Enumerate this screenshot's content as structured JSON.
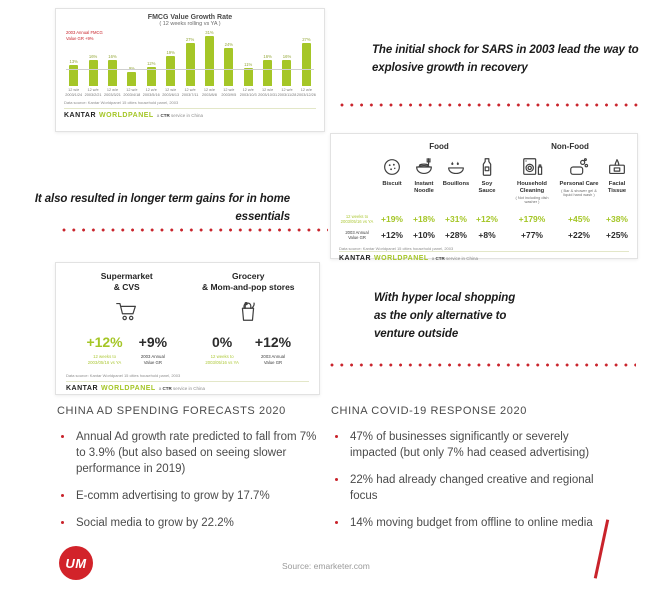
{
  "colors": {
    "lime": "#a5c627",
    "red": "#c9232b",
    "dark": "#3d3d3d"
  },
  "chart_data": {
    "type": "bar",
    "title": "FMCG Value Growth Rate",
    "subtitle": "( 12 weeks rolling vs YA )",
    "period_label": "12 w/e",
    "categories": [
      "2003/1/24",
      "2003/2/21",
      "2003/3/21",
      "2003/4/18",
      "2003/5/16",
      "2003/6/13",
      "2003/7/11",
      "2003/8/8",
      "2003/9/5",
      "2003/10/3",
      "2003/10/31",
      "2003/11/28",
      "2003/12/26"
    ],
    "values": [
      13,
      16,
      16,
      9,
      12,
      19,
      27,
      31,
      24,
      11,
      16,
      16,
      27
    ],
    "value_suffix": "%",
    "ylim": [
      0,
      34
    ],
    "grid": false,
    "reference_line_value": 10,
    "annotation": [
      "2003 Annual FMCG",
      "Value GR +9%"
    ],
    "bar_color": "#a5c627",
    "datasource": "Data source: Kantar Worldpanel 15 cities household panel, 2003"
  },
  "kantar": {
    "brand_black": "KANTAR",
    "brand_lime": "WORLDPANEL",
    "tagline_pre": "a ",
    "tagline_bold": "CTR",
    "tagline_post": " service in China"
  },
  "callouts": {
    "sars": [
      "The initial shock for SARS in 2003 lead the way to",
      "explosive growth in recovery"
    ],
    "gains": [
      "It also resulted in longer term gains for in home",
      "essentials"
    ],
    "hyper": [
      "With hyper local shopping",
      "as the only alternative to",
      "venture outside"
    ]
  },
  "food_panel": {
    "groups": [
      "Food",
      "Non-Food"
    ],
    "row_label_recent": [
      "12 weeks to",
      "2003/05/16 vs YA"
    ],
    "row_label_annual": [
      "2003 Annual",
      "Value GR"
    ],
    "items": [
      {
        "name": "Biscuit",
        "sub": "",
        "icon": "biscuit-icon",
        "recent": "+19%",
        "annual": "+12%"
      },
      {
        "name": "Instant Noodle",
        "sub": "",
        "icon": "noodle-bowl-icon",
        "recent": "+18%",
        "annual": "+10%"
      },
      {
        "name": "Bouillons",
        "sub": "",
        "icon": "bouillon-bowl-icon",
        "recent": "+31%",
        "annual": "+28%"
      },
      {
        "name": "Soy Sauce",
        "sub": "",
        "icon": "soy-sauce-bottle-icon",
        "recent": "+12%",
        "annual": "+8%"
      },
      {
        "name": "Household Cleaning",
        "sub": "( Not including dish washer )",
        "icon": "washing-machine-icon",
        "recent": "+179%",
        "annual": "+77%"
      },
      {
        "name": "Personal Care",
        "sub": "( Bar & shower gel & liquid hand wash )",
        "icon": "soap-icon",
        "recent": "+45%",
        "annual": "+22%"
      },
      {
        "name": "Facial Tissue",
        "sub": "",
        "icon": "tissue-box-icon",
        "recent": "+38%",
        "annual": "+25%"
      }
    ],
    "datasource": "Data source: Kantar Worldpanel 15 cities household panel, 2003"
  },
  "retail_panel": {
    "recent_label": [
      "12 weeks to",
      "2003/05/16 vs YA"
    ],
    "annual_label": [
      "2003 Annual",
      "Value GR"
    ],
    "stores": [
      {
        "name": [
          "Supermarket",
          "& CVS"
        ],
        "icon": "shopping-cart-icon",
        "recent": "+12%",
        "recent_is_lime": true,
        "annual": "+9%"
      },
      {
        "name": [
          "Grocery",
          "& Mom-and-pop stores"
        ],
        "icon": "grocery-bag-icon",
        "recent": "0%",
        "recent_is_lime": false,
        "annual": "+12%"
      }
    ],
    "datasource": "Data source: Kantar Worldpanel 15 cities household panel, 2003"
  },
  "columns": [
    {
      "title": "CHINA AD SPENDING FORECASTS 2020",
      "bullets": [
        "Annual Ad growth rate predicted to fall from 7% to 3.9% (but also based on seeing slower performance in 2019)",
        "E-comm advertising to grow by 17.7%",
        "Social media to grow by 22.2%"
      ]
    },
    {
      "title": "CHINA COVID-19 RESPONSE 2020",
      "bullets": [
        "47% of businesses significantly or severely impacted (but only 7% had ceased advertising)",
        "22% had already changed creative and regional focus",
        "14% moving budget from offline to online media"
      ]
    }
  ],
  "footer": {
    "logo_text": "UM",
    "source": "Source: emarketer.com"
  }
}
